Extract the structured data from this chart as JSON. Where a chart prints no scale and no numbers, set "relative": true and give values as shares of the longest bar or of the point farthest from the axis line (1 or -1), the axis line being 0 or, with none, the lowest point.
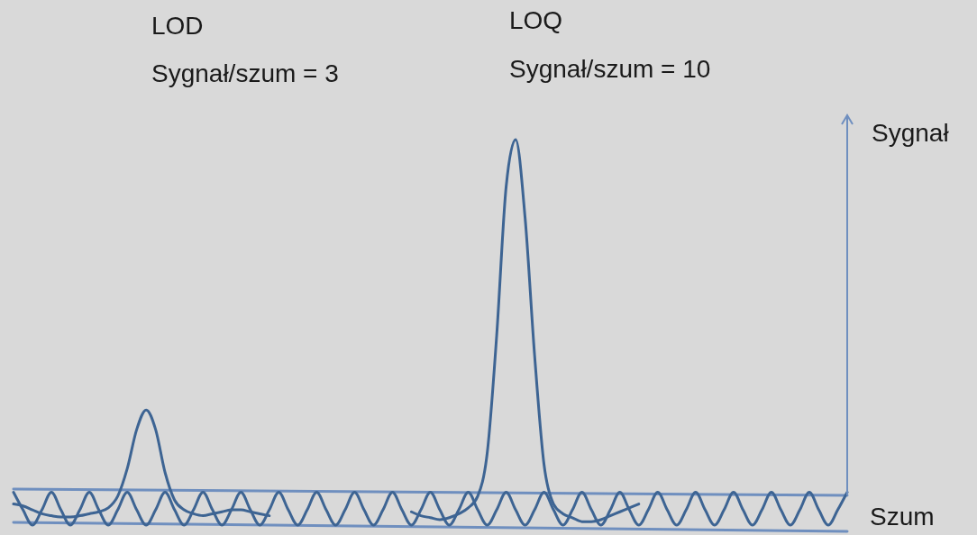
{
  "chart_data": {
    "type": "line",
    "relative": true,
    "legend": false,
    "marker": "none",
    "line_style": "solid",
    "annotations": [
      "LOQ",
      "Sygnał/szum = 10",
      "LOD",
      "Sygnał/szum = 3",
      "Sygnał",
      "Szum"
    ],
    "categories": [
      null,
      null,
      null,
      null,
      null,
      null,
      null,
      null,
      null,
      null,
      null,
      null,
      null,
      null,
      null,
      null,
      null,
      null,
      null,
      null,
      null,
      null,
      null,
      null,
      null,
      null,
      null,
      null,
      null,
      null,
      null,
      null,
      null,
      null,
      null,
      null,
      null,
      null,
      null,
      null,
      null,
      null,
      null,
      null,
      null,
      null,
      null,
      null,
      null,
      null,
      null,
      null,
      null,
      null,
      null,
      null,
      null,
      null,
      null,
      null,
      null,
      null,
      null,
      null,
      null,
      null,
      null,
      null,
      null,
      null,
      null,
      null,
      null,
      null,
      null,
      null,
      null,
      null,
      null,
      null,
      null,
      null,
      null,
      null,
      null,
      null,
      null,
      null,
      null
    ],
    "series": [
      {
        "color": "#6f8fbf",
        "values": [
          0.108,
          null,
          null,
          null,
          null,
          null,
          null,
          null,
          null,
          null,
          null,
          null,
          null,
          null,
          null,
          null,
          null,
          null,
          null,
          null,
          null,
          null,
          null,
          null,
          null,
          null,
          null,
          null,
          null,
          null,
          null,
          null,
          null,
          null,
          null,
          null,
          null,
          null,
          null,
          null,
          null,
          null,
          null,
          null,
          null,
          null,
          null,
          null,
          null,
          null,
          null,
          null,
          null,
          null,
          null,
          null,
          null,
          null,
          null,
          null,
          null,
          null,
          null,
          null,
          null,
          null,
          null,
          null,
          null,
          null,
          null,
          null,
          null,
          null,
          null,
          null,
          null,
          null,
          null,
          null,
          null,
          null,
          null,
          null,
          null,
          null,
          null,
          null,
          0.092
        ]
      },
      {
        "color": "#6f8fbf",
        "values": [
          0.023,
          null,
          null,
          null,
          null,
          null,
          null,
          null,
          null,
          null,
          null,
          null,
          null,
          null,
          null,
          null,
          null,
          null,
          null,
          null,
          null,
          null,
          null,
          null,
          null,
          null,
          null,
          null,
          null,
          null,
          null,
          null,
          null,
          null,
          null,
          null,
          null,
          null,
          null,
          null,
          null,
          null,
          null,
          null,
          null,
          null,
          null,
          null,
          null,
          null,
          null,
          null,
          null,
          null,
          null,
          null,
          null,
          null,
          null,
          null,
          null,
          null,
          null,
          null,
          null,
          null,
          null,
          null,
          null,
          null,
          null,
          null,
          null,
          null,
          null,
          null,
          null,
          null,
          null,
          null,
          null,
          null,
          null,
          null,
          null,
          null,
          null,
          null,
          0
        ]
      },
      {
        "color": "#3d6493",
        "values": [
          0.1,
          0.055,
          0.016,
          0.055,
          0.1,
          0.055,
          0.016,
          0.055,
          0.1,
          0.055,
          0.016,
          0.055,
          0.1,
          0.055,
          0.016,
          0.055,
          0.1,
          0.055,
          0.016,
          0.055,
          0.1,
          0.055,
          0.016,
          0.055,
          0.1,
          0.055,
          0.016,
          0.055,
          0.1,
          0.055,
          0.016,
          0.055,
          0.1,
          0.055,
          0.016,
          0.055,
          0.1,
          0.055,
          0.016,
          0.055,
          0.1,
          0.055,
          0.016,
          0.055,
          0.1,
          0.055,
          0.016,
          0.055,
          0.1,
          0.055,
          0.016,
          0.055,
          0.1,
          0.055,
          0.016,
          0.055,
          0.1,
          0.055,
          0.016,
          0.055,
          0.1,
          0.055,
          0.016,
          0.055,
          0.1,
          0.055,
          0.016,
          0.055,
          0.1,
          0.055,
          0.016,
          0.055,
          0.1,
          0.055,
          0.016,
          0.055,
          0.1,
          0.055,
          0.016,
          0.055,
          0.1,
          0.055,
          0.016,
          0.055,
          0.1,
          0.055,
          0.016,
          0.055,
          0.1
        ]
      },
      {
        "color": "#3d6493",
        "values": [
          0.07,
          0.065,
          0.055,
          0.045,
          0.04,
          0.037,
          0.037,
          0.04,
          0.045,
          0.05,
          0.06,
          0.09,
          0.16,
          0.26,
          0.31,
          0.26,
          0.15,
          0.08,
          0.055,
          0.045,
          0.04,
          0.045,
          0.05,
          0.055,
          0.055,
          0.05,
          0.045,
          0.04,
          null,
          null,
          null,
          null,
          null,
          null,
          null,
          null,
          null,
          null,
          null,
          null,
          null,
          null,
          null,
          null,
          null,
          null,
          null,
          null,
          null,
          null,
          null,
          null,
          null,
          null,
          null,
          null,
          null,
          null,
          null,
          null,
          null,
          null,
          null,
          null,
          null,
          null,
          null,
          null,
          null,
          null,
          null,
          null,
          null,
          null,
          null,
          null,
          null,
          null,
          null,
          null,
          null,
          null,
          null,
          null,
          null,
          null,
          null,
          null,
          null
        ]
      },
      {
        "color": "#3d6493",
        "values": [
          null,
          null,
          null,
          null,
          null,
          null,
          null,
          null,
          null,
          null,
          null,
          null,
          null,
          null,
          null,
          null,
          null,
          null,
          null,
          null,
          null,
          null,
          null,
          null,
          null,
          null,
          null,
          null,
          null,
          null,
          null,
          null,
          null,
          null,
          null,
          null,
          null,
          null,
          null,
          null,
          null,
          null,
          0.05,
          0.04,
          0.035,
          0.03,
          0.035,
          0.045,
          0.06,
          0.09,
          0.2,
          0.5,
          0.88,
          1.0,
          0.8,
          0.45,
          0.17,
          0.07,
          0.045,
          0.035,
          0.025,
          0.025,
          0.03,
          0.04,
          0.05,
          0.06,
          0.07,
          null,
          null,
          null,
          null,
          null,
          null,
          null,
          null,
          null,
          null,
          null,
          null,
          null,
          null,
          null,
          null,
          null,
          null,
          null,
          null,
          null,
          null
        ]
      }
    ]
  }
}
